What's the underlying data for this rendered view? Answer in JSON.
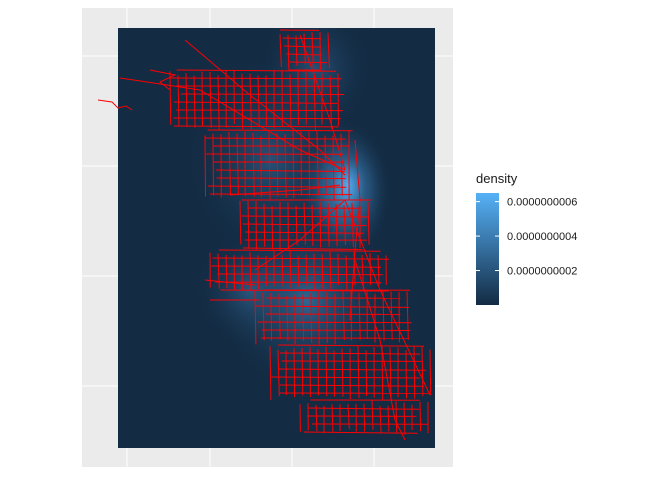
{
  "chart_data": {
    "type": "heatmap",
    "title": "",
    "xlabel": "",
    "ylabel": "",
    "overlay": "street network lines",
    "legend": {
      "title": "density",
      "position": "right",
      "breaks": [
        {
          "label": "0.0000000002",
          "value": 2e-10
        },
        {
          "label": "0.0000000004",
          "value": 4e-10
        },
        {
          "label": "0.0000000006",
          "value": 6e-10
        }
      ],
      "min": 0.0,
      "max": 6.5e-10
    }
  },
  "colors": {
    "panel_background": "#ebebeb",
    "grid_line": "#ffffff",
    "low_density": "#132b43",
    "high_density": "#56b1f7",
    "streets": "#ff0000"
  }
}
